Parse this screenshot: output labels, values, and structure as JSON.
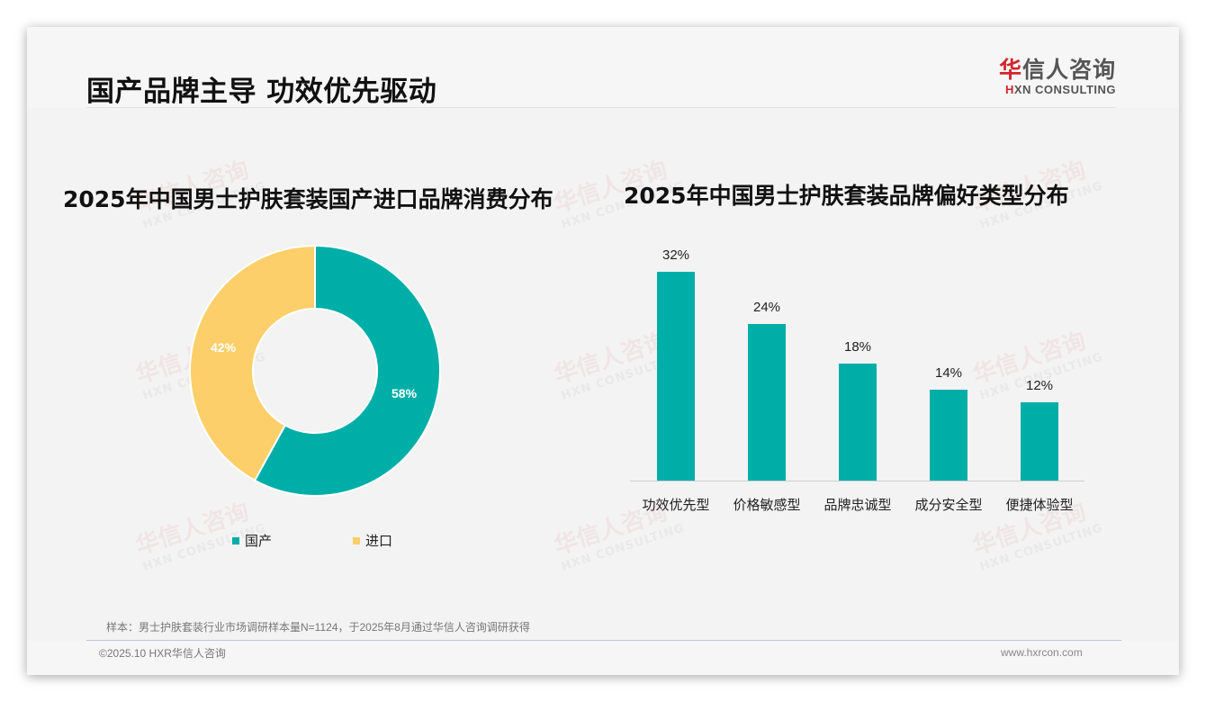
{
  "header": {
    "title": "国产品牌主导 功效优先驱动",
    "logo": {
      "cn_accent": "华",
      "cn_rest": "信人咨询",
      "en_accent": "H",
      "en_rest": "XN CONSULTING"
    }
  },
  "watermark": {
    "cn": "华信人咨询",
    "en": "HXN CONSULTING"
  },
  "colors": {
    "domestic": "#00aea8",
    "imported": "#fdcf6a",
    "bar": "#00aea8"
  },
  "chart_data": [
    {
      "type": "pie",
      "variant": "donut",
      "title": "2025年中国男士护肤套装国产进口品牌消费分布",
      "categories": [
        "国产",
        "进口"
      ],
      "values": [
        58,
        42
      ],
      "labels": [
        "58%",
        "42%"
      ],
      "colors": [
        "#00aea8",
        "#fdcf6a"
      ],
      "legend_position": "bottom"
    },
    {
      "type": "bar",
      "title": "2025年中国男士护肤套装品牌偏好类型分布",
      "categories": [
        "功效优先型",
        "价格敏感型",
        "品牌忠诚型",
        "成分安全型",
        "便捷体验型"
      ],
      "values": [
        32,
        24,
        18,
        14,
        12
      ],
      "labels": [
        "32%",
        "24%",
        "18%",
        "14%",
        "12%"
      ],
      "xlabel": "",
      "ylabel": "",
      "ylim": [
        0,
        35
      ],
      "grid": false,
      "color": "#00aea8"
    }
  ],
  "legend": [
    {
      "label": "国产"
    },
    {
      "label": "进口"
    }
  ],
  "footer": {
    "source": "样本：男士护肤套装行业市场调研样本量N=1124，于2025年8月通过华信人咨询调研获得",
    "copyright": "©2025.10 HXR华信人咨询",
    "website": "www.hxrcon.com"
  }
}
